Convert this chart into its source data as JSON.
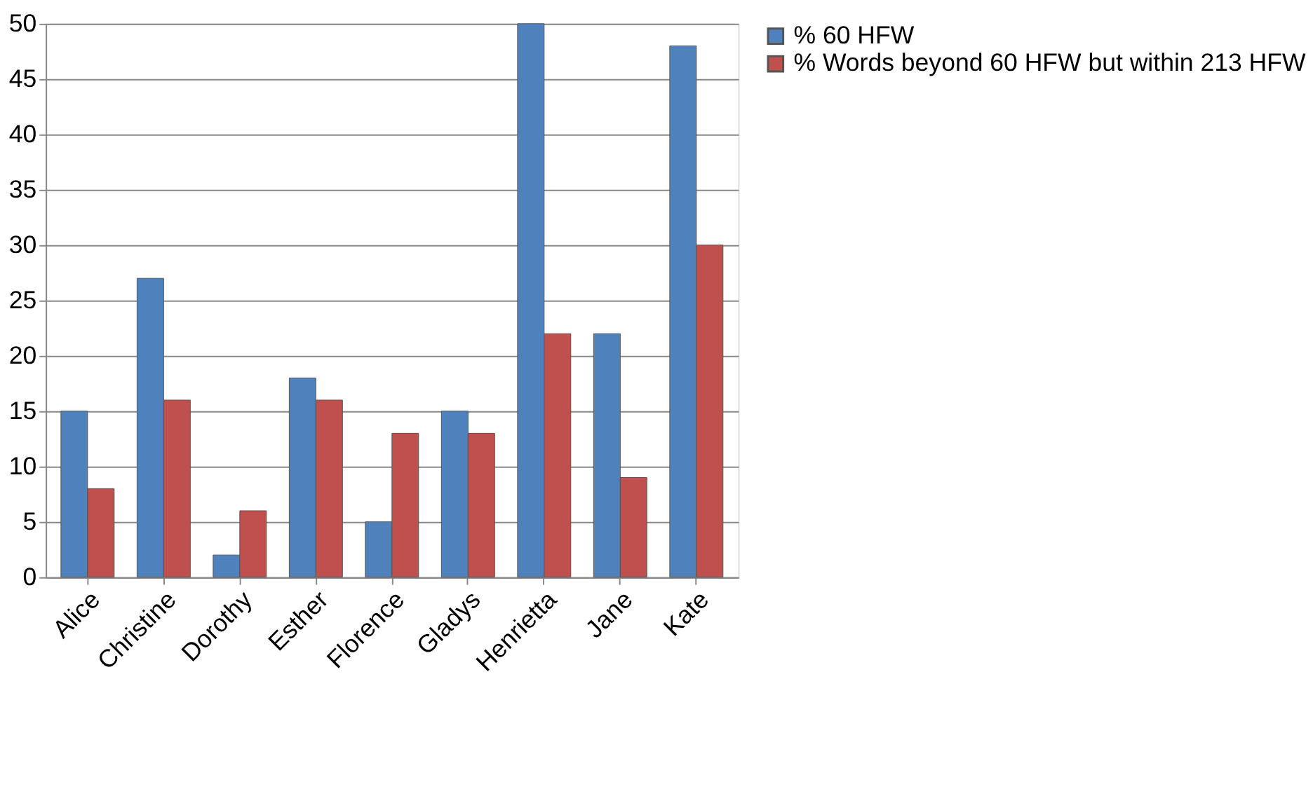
{
  "chart_data": {
    "type": "bar",
    "categories": [
      "Alice",
      "Christine",
      "Dorothy",
      "Esther",
      "Florence",
      "Gladys",
      "Henrietta",
      "Jane",
      "Kate"
    ],
    "series": [
      {
        "name": "% 60 HFW",
        "color": "#4f81bd",
        "values": [
          15,
          27,
          2,
          18,
          5,
          15,
          50,
          22,
          48
        ]
      },
      {
        "name": "% Words beyond 60 HFW but within 213 HFW",
        "color": "#c0504d",
        "values": [
          8,
          16,
          6,
          16,
          13,
          13,
          22,
          9,
          30
        ]
      }
    ],
    "ylim": [
      0,
      50
    ],
    "yticks": [
      0,
      5,
      10,
      15,
      20,
      25,
      30,
      35,
      40,
      45,
      50
    ],
    "grid": "y",
    "legend": "right"
  }
}
